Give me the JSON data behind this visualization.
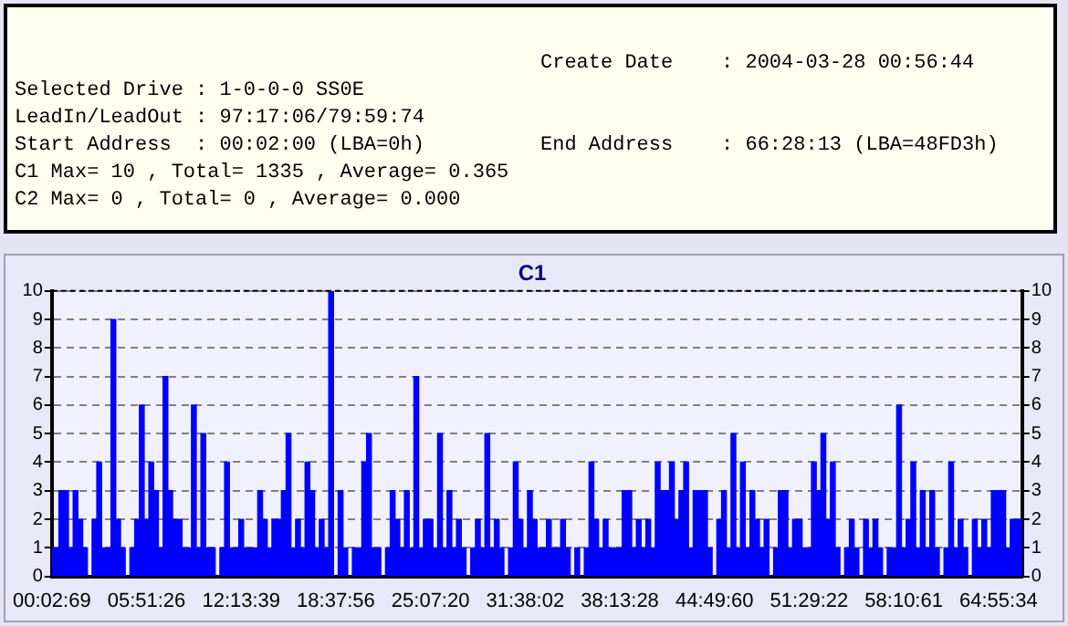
{
  "chart_data": {
    "type": "bar",
    "title": "C1",
    "annotations": [
      "Create Date    : 2004-03-28 00:56:44",
      "Selected Drive : 1-0-0-0 SS0E",
      "LeadIn/LeadOut : 97:17:06/79:59:74",
      "Start Address  : 00:02:00 (LBA=0h)",
      "End Address    : 66:28:13 (LBA=48FD3h)",
      "C1 Max= 10 , Total= 1335 , Average= 0.365",
      "C2 Max= 0 , Total= 0 , Average= 0.000"
    ],
    "categories": [
      "00:02:69",
      null,
      null,
      null,
      null,
      null,
      null,
      null,
      null,
      null,
      null,
      null,
      null,
      null,
      null,
      null,
      null,
      null,
      null,
      null,
      "05:51:26",
      null,
      null,
      null,
      null,
      null,
      null,
      null,
      null,
      null,
      null,
      null,
      null,
      null,
      null,
      null,
      null,
      null,
      null,
      null,
      "12:13:39",
      null,
      null,
      null,
      null,
      null,
      null,
      null,
      null,
      null,
      null,
      null,
      null,
      null,
      null,
      null,
      null,
      null,
      null,
      null,
      "18:37:56",
      null,
      null,
      null,
      null,
      null,
      null,
      null,
      null,
      null,
      null,
      null,
      null,
      null,
      null,
      null,
      null,
      null,
      null,
      null,
      "25:07:20",
      null,
      null,
      null,
      null,
      null,
      null,
      null,
      null,
      null,
      null,
      null,
      null,
      null,
      null,
      null,
      null,
      null,
      null,
      null,
      "31:38:02",
      null,
      null,
      null,
      null,
      null,
      null,
      null,
      null,
      null,
      null,
      null,
      null,
      null,
      null,
      null,
      null,
      null,
      null,
      null,
      "38:13:28",
      null,
      null,
      null,
      null,
      null,
      null,
      null,
      null,
      null,
      null,
      null,
      null,
      null,
      null,
      null,
      null,
      null,
      null,
      null,
      "44:49:60",
      null,
      null,
      null,
      null,
      null,
      null,
      null,
      null,
      null,
      null,
      null,
      null,
      null,
      null,
      null,
      null,
      null,
      null,
      null,
      "51:29:22",
      null,
      null,
      null,
      null,
      null,
      null,
      null,
      null,
      null,
      null,
      null,
      null,
      null,
      null,
      null,
      null,
      null,
      null,
      null,
      "58:10:61",
      null,
      null,
      null,
      null,
      null,
      null,
      null,
      null,
      null,
      null,
      null,
      null,
      null,
      null,
      null,
      null,
      null,
      null,
      null,
      "64:55:34",
      null,
      null,
      null,
      null,
      null
    ],
    "values": [
      1,
      1,
      3,
      3,
      1,
      3,
      2,
      1,
      0,
      2,
      4,
      1,
      1,
      9,
      2,
      1,
      0,
      1,
      2,
      6,
      2,
      4,
      3,
      1,
      7,
      3,
      2,
      2,
      1,
      1,
      6,
      1,
      5,
      1,
      1,
      0,
      1,
      4,
      1,
      1,
      2,
      1,
      1,
      1,
      3,
      2,
      1,
      2,
      2,
      3,
      5,
      1,
      2,
      1,
      4,
      3,
      1,
      2,
      1,
      10,
      0,
      3,
      1,
      0,
      1,
      1,
      4,
      5,
      1,
      1,
      0,
      1,
      3,
      2,
      1,
      3,
      1,
      7,
      1,
      2,
      2,
      1,
      5,
      1,
      3,
      1,
      2,
      1,
      0,
      1,
      2,
      1,
      5,
      1,
      2,
      1,
      0,
      1,
      4,
      2,
      1,
      3,
      2,
      1,
      1,
      2,
      1,
      1,
      2,
      1,
      0,
      1,
      0,
      1,
      4,
      2,
      1,
      2,
      1,
      1,
      1,
      3,
      3,
      1,
      2,
      1,
      2,
      1,
      4,
      3,
      3,
      4,
      2,
      3,
      4,
      1,
      3,
      3,
      3,
      1,
      0,
      2,
      3,
      1,
      5,
      1,
      4,
      1,
      3,
      2,
      1,
      2,
      0,
      1,
      3,
      3,
      1,
      2,
      2,
      1,
      1,
      4,
      3,
      5,
      2,
      4,
      1,
      0,
      1,
      2,
      1,
      0,
      2,
      1,
      2,
      1,
      0,
      1,
      1,
      6,
      1,
      2,
      4,
      1,
      3,
      1,
      3,
      1,
      0,
      1,
      4,
      1,
      2,
      1,
      0,
      2,
      1,
      2,
      1,
      3,
      3,
      3,
      1,
      2,
      2,
      2
    ],
    "color": "#0000ff",
    "ylim": [
      0,
      10
    ],
    "yticks": [
      0,
      1,
      2,
      3,
      4,
      5,
      6,
      7,
      8,
      9,
      10
    ],
    "y2lim": [
      0,
      10
    ],
    "y2ticks": [
      0,
      1,
      2,
      3,
      4,
      5,
      6,
      7,
      8,
      9,
      10
    ],
    "grid": "y"
  }
}
